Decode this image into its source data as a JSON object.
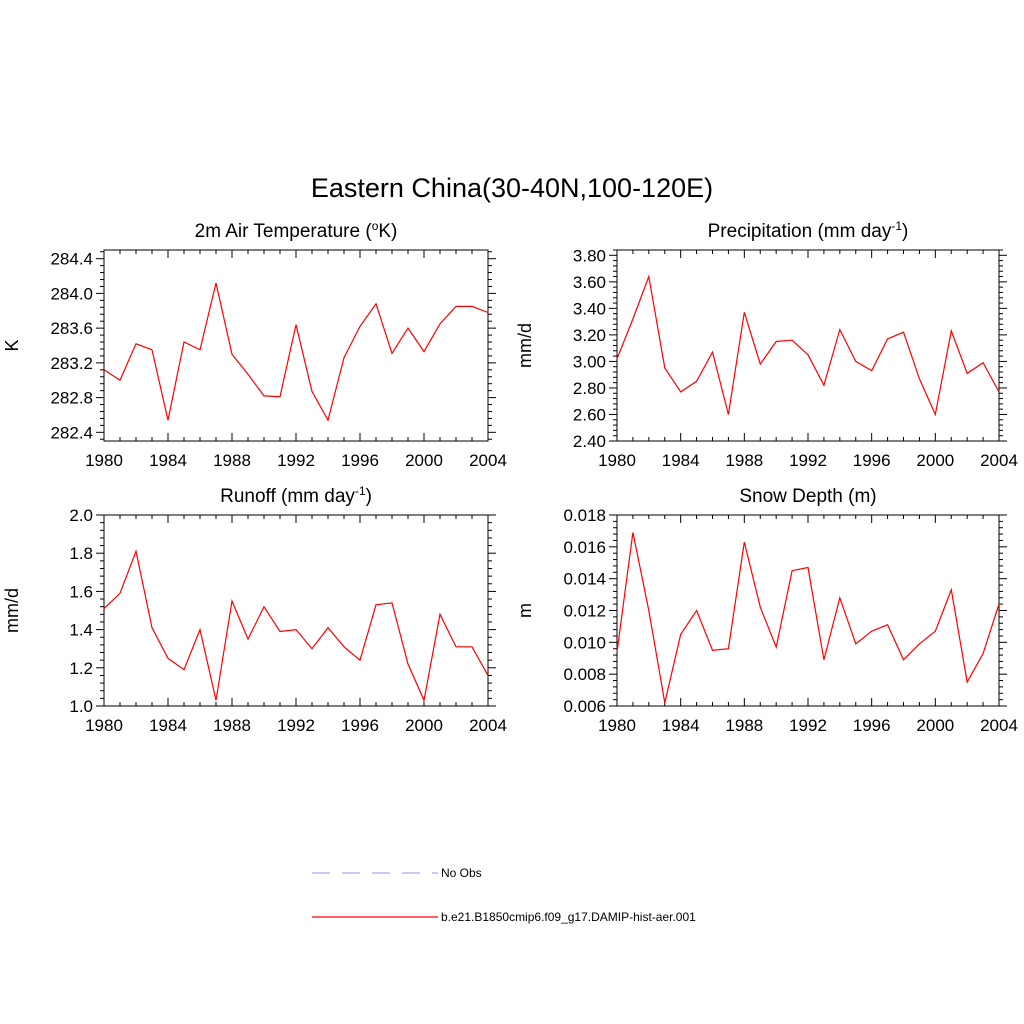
{
  "figure": {
    "title": "Eastern China(30-40N,100-120E)"
  },
  "legend": {
    "entries": [
      {
        "label": "No Obs",
        "style": "dashed",
        "color": "#aaaaee"
      },
      {
        "label": "b.e21.B1850cmip6.f09_g17.DAMIP-hist-aer.001",
        "style": "solid",
        "color": "#ff0000"
      }
    ]
  },
  "chart_data": [
    {
      "type": "line",
      "title": "2m Air Temperature (",
      "title_sup": "o",
      "title_suffix": "K)",
      "ylabel": "K",
      "xlim": [
        1980,
        2004
      ],
      "ylim": [
        282.3,
        284.5
      ],
      "xticks": [
        1980,
        1984,
        1988,
        1992,
        1996,
        2000,
        2004
      ],
      "xtick_labels": [
        "1980",
        "1984",
        "1988",
        "1992",
        "1996",
        "2000",
        "2004"
      ],
      "yticks": [
        282.4,
        282.8,
        283.2,
        283.6,
        284.0,
        284.4
      ],
      "ytick_labels": [
        "282.4",
        "282.8",
        "283.2",
        "283.6",
        "284.0",
        "284.4"
      ],
      "grid": false,
      "color": "#ff0000",
      "x": [
        1980,
        1981,
        1982,
        1983,
        1984,
        1985,
        1986,
        1987,
        1988,
        1989,
        1990,
        1991,
        1992,
        1993,
        1994,
        1995,
        1996,
        1997,
        1998,
        1999,
        2000,
        2001,
        2002,
        2003,
        2004
      ],
      "values": [
        283.12,
        283.0,
        283.42,
        283.35,
        282.54,
        283.44,
        283.35,
        284.12,
        283.3,
        283.07,
        282.82,
        282.81,
        283.64,
        282.87,
        282.54,
        283.26,
        283.62,
        283.88,
        283.31,
        283.6,
        283.33,
        283.65,
        283.85,
        283.85,
        283.78
      ]
    },
    {
      "type": "line",
      "title": "Precipitation (mm day",
      "title_sup": "-1",
      "title_suffix": ")",
      "ylabel": "mm/d",
      "xlim": [
        1980,
        2004
      ],
      "ylim": [
        2.4,
        3.84
      ],
      "xticks": [
        1980,
        1984,
        1988,
        1992,
        1996,
        2000,
        2004
      ],
      "xtick_labels": [
        "1980",
        "1984",
        "1988",
        "1992",
        "1996",
        "2000",
        "2004"
      ],
      "yticks": [
        2.4,
        2.6,
        2.8,
        3.0,
        3.2,
        3.4,
        3.6,
        3.8
      ],
      "ytick_labels": [
        "2.40",
        "2.60",
        "2.80",
        "3.00",
        "3.20",
        "3.40",
        "3.60",
        "3.80"
      ],
      "grid": false,
      "color": "#ff0000",
      "x": [
        1980,
        1981,
        1982,
        1983,
        1984,
        1985,
        1986,
        1987,
        1988,
        1989,
        1990,
        1991,
        1992,
        1993,
        1994,
        1995,
        1996,
        1997,
        1998,
        1999,
        2000,
        2001,
        2002,
        2003,
        2004
      ],
      "values": [
        3.02,
        3.32,
        3.64,
        2.95,
        2.77,
        2.85,
        3.07,
        2.6,
        3.37,
        2.98,
        3.15,
        3.16,
        3.05,
        2.82,
        3.24,
        3.0,
        2.93,
        3.17,
        3.22,
        2.87,
        2.6,
        3.23,
        2.91,
        2.99,
        2.77
      ]
    },
    {
      "type": "line",
      "title": "Runoff (mm day",
      "title_sup": "-1",
      "title_suffix": ")",
      "ylabel": "mm/d",
      "xlim": [
        1980,
        2004
      ],
      "ylim": [
        1.0,
        2.0
      ],
      "xticks": [
        1980,
        1984,
        1988,
        1992,
        1996,
        2000,
        2004
      ],
      "xtick_labels": [
        "1980",
        "1984",
        "1988",
        "1992",
        "1996",
        "2000",
        "2004"
      ],
      "yticks": [
        1.0,
        1.2,
        1.4,
        1.6,
        1.8,
        2.0
      ],
      "ytick_labels": [
        "1.0",
        "1.2",
        "1.4",
        "1.6",
        "1.8",
        "2.0"
      ],
      "grid": false,
      "color": "#ff0000",
      "x": [
        1980,
        1981,
        1982,
        1983,
        1984,
        1985,
        1986,
        1987,
        1988,
        1989,
        1990,
        1991,
        1992,
        1993,
        1994,
        1995,
        1996,
        1997,
        1998,
        1999,
        2000,
        2001,
        2002,
        2003,
        2004
      ],
      "values": [
        1.51,
        1.59,
        1.81,
        1.41,
        1.25,
        1.19,
        1.4,
        1.03,
        1.55,
        1.35,
        1.52,
        1.39,
        1.4,
        1.3,
        1.41,
        1.31,
        1.24,
        1.53,
        1.54,
        1.22,
        1.03,
        1.48,
        1.31,
        1.31,
        1.16
      ]
    },
    {
      "type": "line",
      "title": "Snow Depth (m)",
      "title_sup": "",
      "title_suffix": "",
      "ylabel": "m",
      "xlim": [
        1980,
        2004
      ],
      "ylim": [
        0.006,
        0.018
      ],
      "xticks": [
        1980,
        1984,
        1988,
        1992,
        1996,
        2000,
        2004
      ],
      "xtick_labels": [
        "1980",
        "1984",
        "1988",
        "1992",
        "1996",
        "2000",
        "2004"
      ],
      "yticks": [
        0.006,
        0.008,
        0.01,
        0.012,
        0.014,
        0.016,
        0.018
      ],
      "ytick_labels": [
        "0.006",
        "0.008",
        "0.010",
        "0.012",
        "0.014",
        "0.016",
        "0.018"
      ],
      "grid": false,
      "color": "#ff0000",
      "x": [
        1980,
        1981,
        1982,
        1983,
        1984,
        1985,
        1986,
        1987,
        1988,
        1989,
        1990,
        1991,
        1992,
        1993,
        1994,
        1995,
        1996,
        1997,
        1998,
        1999,
        2000,
        2001,
        2002,
        2003,
        2004
      ],
      "values": [
        0.0094,
        0.0169,
        0.012,
        0.0062,
        0.0105,
        0.012,
        0.0095,
        0.0096,
        0.0163,
        0.0122,
        0.0097,
        0.0145,
        0.0147,
        0.0089,
        0.0128,
        0.0099,
        0.0107,
        0.0111,
        0.0089,
        0.0099,
        0.0107,
        0.0133,
        0.0075,
        0.0093,
        0.0124
      ]
    }
  ]
}
